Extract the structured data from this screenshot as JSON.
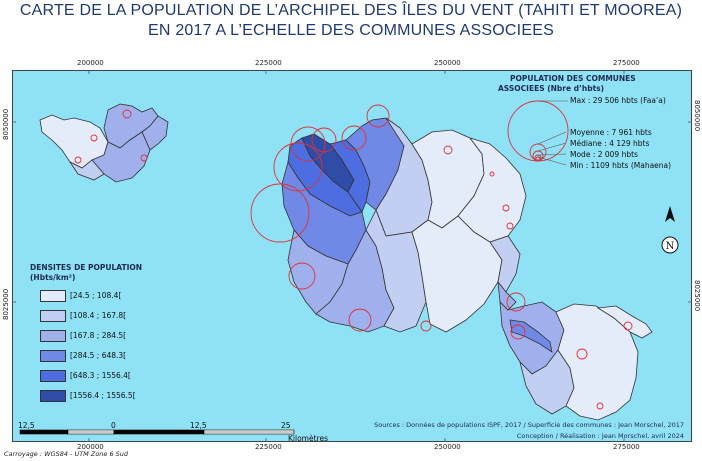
{
  "title": {
    "line1": "CARTE DE LA POPULATION DE L’ARCHIPEL DES ÎLES DU VENT (TAHITI ET MOOREA)",
    "line2": "EN 2017 A L’ECHELLE DES COMMUNES ASSOCIEES"
  },
  "grid": {
    "x_ticks": [
      "200000",
      "225000",
      "250000",
      "275000"
    ],
    "y_ticks": [
      "8050000",
      "8025000"
    ]
  },
  "legend_density": {
    "title_line1": "DENSITES DE POPULATION",
    "title_line2": "(Hbts/km²)",
    "classes": [
      {
        "label": "[24.5 ; 108.4[",
        "color": "#e4ebf9"
      },
      {
        "label": "[108.4 ; 167.8[",
        "color": "#c3cff2"
      },
      {
        "label": "[167.8 ; 284.5[",
        "color": "#9fb0ec"
      },
      {
        "label": "[284.5 ; 648.3[",
        "color": "#7189e6"
      },
      {
        "label": "[648.3 ; 1556.4[",
        "color": "#4d6de1"
      },
      {
        "label": "[1556.4 ; 1556.5[",
        "color": "#2f4ca6"
      }
    ]
  },
  "legend_population": {
    "title_line1": "POPULATION DES COMMUNES",
    "title_line2": "ASSOCIEES (Nbre d’hbts)",
    "max": "Max : 29 506 hbts (Faa’a)",
    "mean": "Moyenne : 7 961 hbts",
    "median": "Médiane : 4 129 hbts",
    "mode": "Mode : 2 009 hbts",
    "min": "Min : 1109 hbts (Mahaena)",
    "circle_color": "#e0303a"
  },
  "scale": {
    "labels": [
      "12,5",
      "0",
      "12,5",
      "25"
    ],
    "unit": "Kilomètres"
  },
  "sources": {
    "line1": "Sources : Données de populations ISPF, 2017 / Superficie des communes : Jean Morschel, 2017",
    "line2": "Conception / Réalisation : Jean Morschel, avril 2024"
  },
  "footer": "Carroyage : WGS84 - UTM Zone 6 Sud",
  "north_arrow": {
    "icon": "north-arrow-icon",
    "label": "N"
  },
  "colors": {
    "sea": "#8fe1f5",
    "outline": "#333333"
  }
}
